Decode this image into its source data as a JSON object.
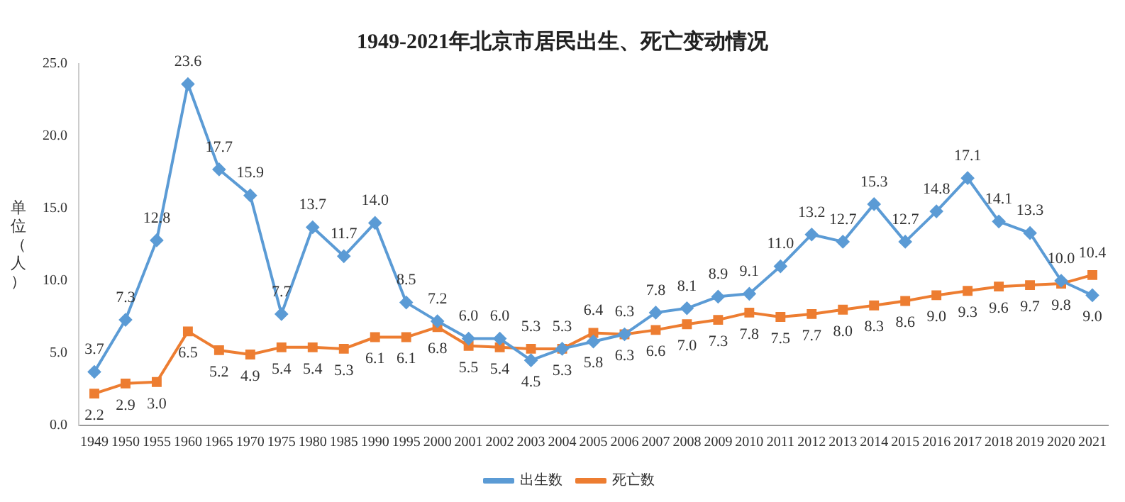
{
  "chart_data": {
    "type": "line",
    "title": "1949-2021年北京市居民出生、死亡变动情况",
    "ylabel": "单位（人）",
    "categories": [
      "1949",
      "1950",
      "1955",
      "1960",
      "1965",
      "1970",
      "1975",
      "1980",
      "1985",
      "1990",
      "1995",
      "2000",
      "2001",
      "2002",
      "2003",
      "2004",
      "2005",
      "2006",
      "2007",
      "2008",
      "2009",
      "2010",
      "2011",
      "2012",
      "2013",
      "2014",
      "2015",
      "2016",
      "2017",
      "2018",
      "2019",
      "2020",
      "2021"
    ],
    "series": [
      {
        "name": "出生数",
        "color": "#5b9bd5",
        "marker": "diamond",
        "values": [
          3.7,
          7.3,
          12.8,
          23.6,
          17.7,
          15.9,
          7.7,
          13.7,
          11.7,
          14.0,
          8.5,
          7.2,
          6.0,
          6.0,
          4.5,
          5.3,
          5.8,
          6.3,
          7.8,
          8.1,
          8.9,
          9.1,
          11.0,
          13.2,
          12.7,
          15.3,
          12.7,
          14.8,
          17.1,
          14.1,
          13.3,
          10.0,
          9.0
        ],
        "value_labels": [
          "3.7",
          "7.3",
          "12.8",
          "23.6",
          "17.7",
          "15.9",
          "7.7",
          "13.7",
          "11.7",
          "14.0",
          "8.5",
          "7.2",
          "6.0",
          "6.0",
          "4.5",
          "5.3",
          "5.8",
          "6.3",
          "7.8",
          "8.1",
          "8.9",
          "9.1",
          "11.0",
          "13.2",
          "12.7",
          "15.3",
          "12.7",
          "14.8",
          "17.1",
          "14.1",
          "13.3",
          "10.0",
          "9.0"
        ]
      },
      {
        "name": "死亡数",
        "color": "#ed7d31",
        "marker": "square",
        "values": [
          2.2,
          2.9,
          3.0,
          6.5,
          5.2,
          4.9,
          5.4,
          5.4,
          5.3,
          6.1,
          6.1,
          6.8,
          5.5,
          5.4,
          5.3,
          5.3,
          6.4,
          6.3,
          6.6,
          7.0,
          7.3,
          7.8,
          7.5,
          7.7,
          8.0,
          8.3,
          8.6,
          9.0,
          9.3,
          9.6,
          9.7,
          9.8,
          10.4
        ],
        "value_labels": [
          "2.2",
          "2.9",
          "3.0",
          "6.5",
          "5.2",
          "4.9",
          "5.4",
          "5.4",
          "5.3",
          "6.1",
          "6.1",
          "6.8",
          "5.5",
          "5.4",
          "5.3",
          "5.3",
          "6.4",
          "6.3",
          "6.6",
          "7.0",
          "7.3",
          "7.8",
          "7.5",
          "7.7",
          "8.0",
          "8.3",
          "8.6",
          "9.0",
          "9.3",
          "9.6",
          "9.7",
          "9.8",
          "10.4"
        ]
      }
    ],
    "ylim": [
      0,
      25
    ],
    "yticks": [
      {
        "value": 0,
        "label": "0.0"
      },
      {
        "value": 5,
        "label": "5.0"
      },
      {
        "value": 10,
        "label": "10.0"
      },
      {
        "value": 15,
        "label": "15.0"
      },
      {
        "value": 20,
        "label": "20.0"
      },
      {
        "value": 25,
        "label": "25.0"
      }
    ],
    "grid": false,
    "legend": "bottom",
    "line_style": "solid"
  }
}
